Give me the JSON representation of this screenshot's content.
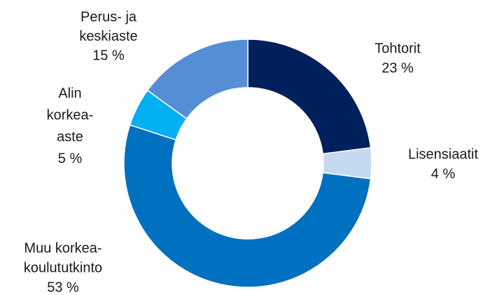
{
  "chart_data": {
    "type": "donut",
    "categories": [
      [
        "Tohtorit"
      ],
      [
        "Lisensiaatit"
      ],
      [
        "Muu korkea-",
        "koulututkinto"
      ],
      [
        "Alin",
        "korkea-",
        "aste"
      ],
      [
        "Perus- ja",
        "keskiaste"
      ]
    ],
    "values": [
      23,
      4,
      53,
      5,
      15
    ],
    "value_labels": [
      "23 %",
      "4 %",
      "53 %",
      "5 %",
      "15 %"
    ],
    "colors": [
      "#00205b",
      "#c5d9f1",
      "#0070c0",
      "#00b0f0",
      "#558ed5"
    ]
  }
}
